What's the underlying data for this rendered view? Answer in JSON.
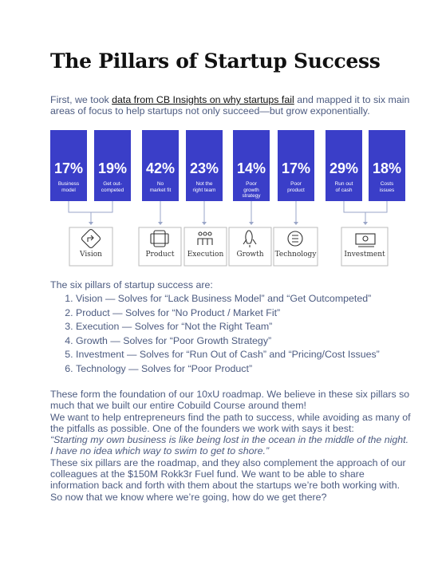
{
  "title": "The Pillars of Startup Success",
  "intro": {
    "before": "First, we took ",
    "link": "data from CB Insights on why startups fail",
    "after": " and mapped it to six main areas of focus to help startups not only succeed—but grow exponentially."
  },
  "infographic": {
    "bars": [
      {
        "percent": "17%",
        "label": "Business\nmodel"
      },
      {
        "percent": "19%",
        "label": "Get out-\ncompeted"
      },
      {
        "percent": "42%",
        "label": "No\nmarket fit"
      },
      {
        "percent": "23%",
        "label": "Not the\nright team"
      },
      {
        "percent": "14%",
        "label": "Poor\ngrowth\nstrategy"
      },
      {
        "percent": "17%",
        "label": "Poor\nproduct"
      },
      {
        "percent": "29%",
        "label": "Run out\nof cash"
      },
      {
        "percent": "18%",
        "label": "Costs\nissues"
      }
    ],
    "pillars": [
      "Vision",
      "Product",
      "Execution",
      "Growth",
      "Technology",
      "Investment"
    ]
  },
  "list": {
    "heading": "The six pillars of startup success are:",
    "items": [
      "Vision — Solves for “Lack Business Model” and “Get Outcompeted”",
      "Product — Solves for “No Product / Market Fit”",
      "Execution — Solves for “Not the Right Team”",
      "Growth — Solves for “Poor Growth Strategy”",
      "Investment — Solves for “Run Out of Cash” and “Pricing/Cost Issues”",
      "Technology — Solves for “Poor Product”"
    ]
  },
  "body": {
    "p1": "These form the foundation of our 10xU roadmap. We believe in these six pillars so much that we built our entire Cobuild Course around them!",
    "p2": "We want to help entrepreneurs find the path to success, while avoiding as many of the pitfalls as possible. One of the founders we work with says it best:",
    "quote": "“Starting my own business is like being lost in the ocean in the middle of the night. I have no idea which way to swim to get to shore.”",
    "p3": "These six pillars are the roadmap, and they also complement the approach of our colleagues at the $150M Rokk3r Fuel fund. We want to be able to share information back and forth with them about the startups we’re both working with.",
    "p4": "So now that we know where we’re going, how do we get there?"
  }
}
